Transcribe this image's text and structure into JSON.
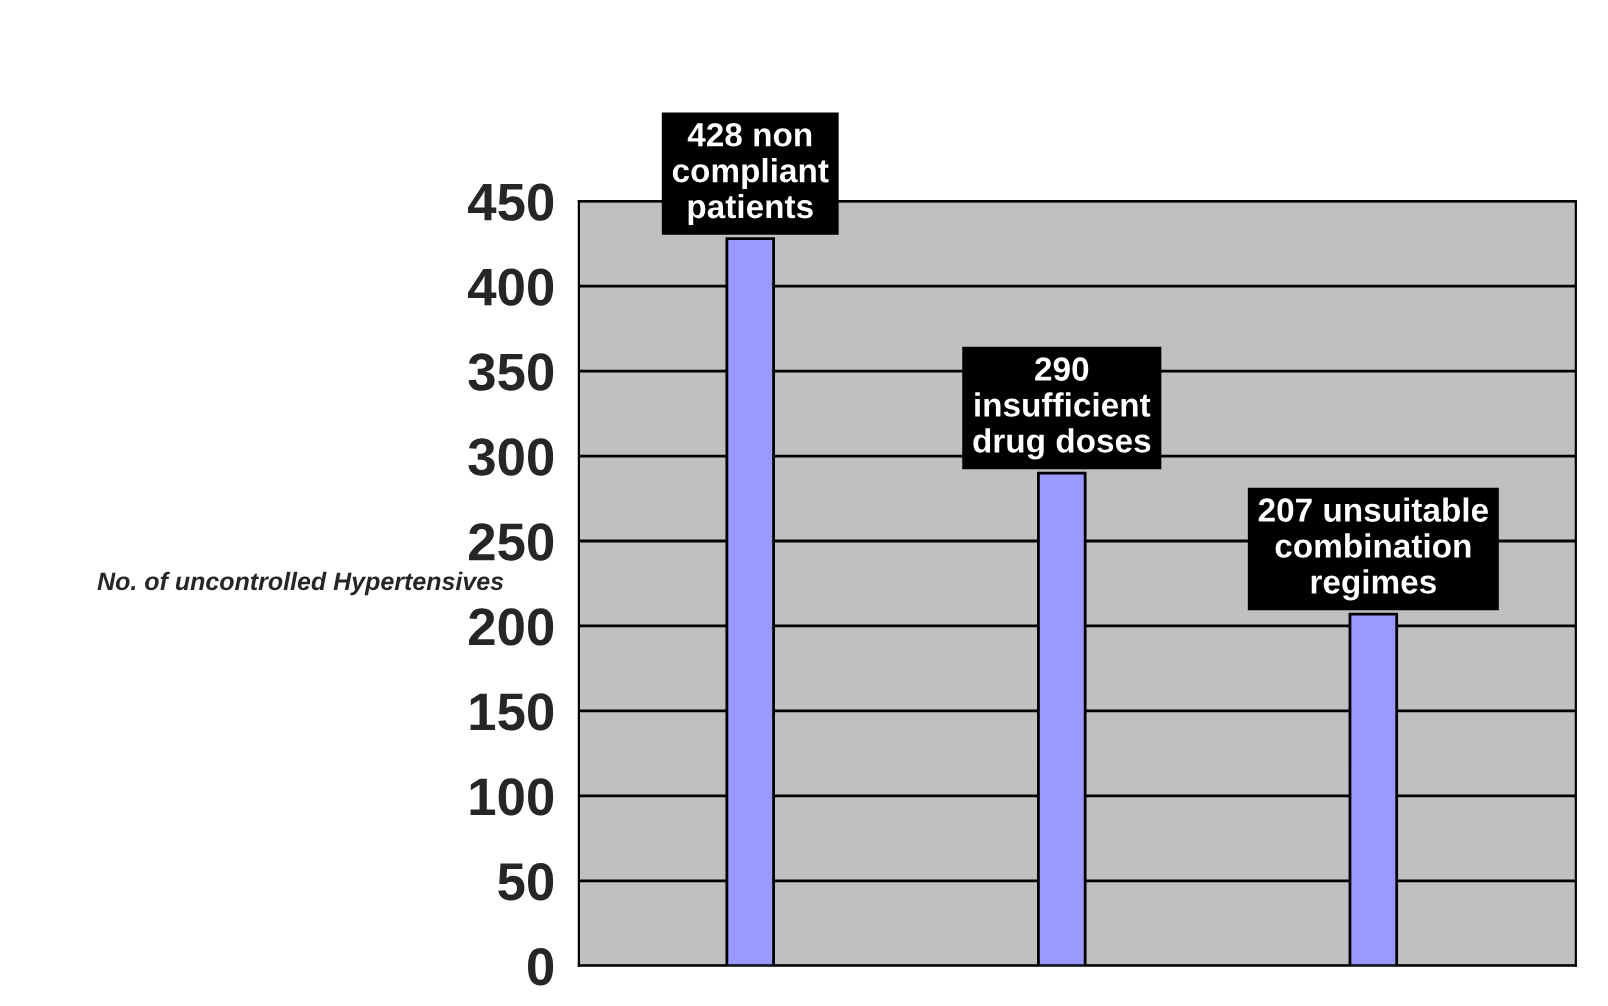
{
  "chart_data": {
    "type": "bar",
    "ylabel": "No. of uncontrolled Hypertensives",
    "categories": [
      null,
      null,
      null
    ],
    "values": [
      428,
      290,
      207
    ],
    "value_labels": [
      "428 non compliant patients",
      "290 insufficient drug doses",
      "207 unsuitable combination regimes"
    ],
    "color": "#9999ff",
    "ylim": [
      0,
      450
    ],
    "yticks": [
      0,
      50,
      100,
      150,
      200,
      250,
      300,
      350,
      400,
      450
    ],
    "grid": "y",
    "legend": false
  }
}
